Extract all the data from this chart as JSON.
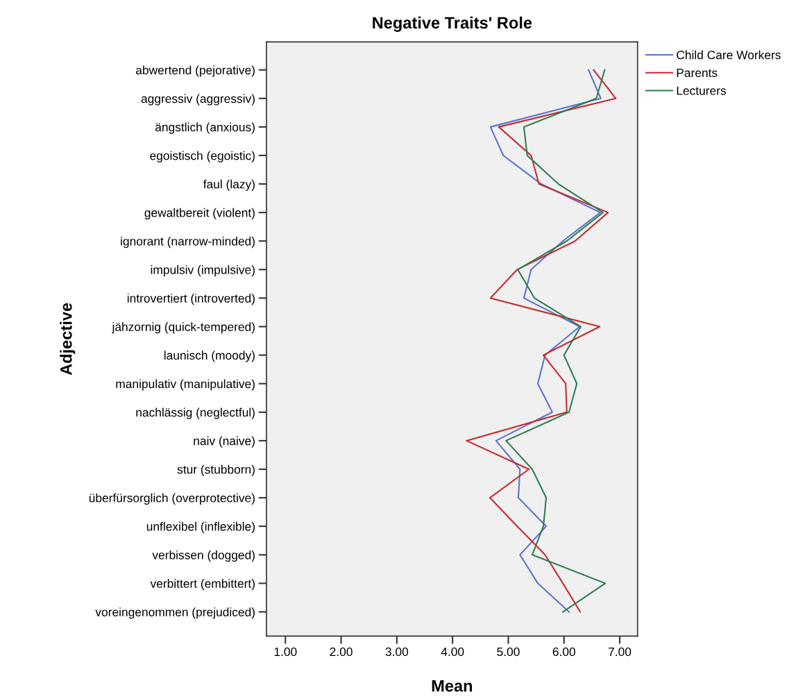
{
  "chart_data": {
    "type": "line",
    "orientation": "horizontal",
    "title": "Negative Traits' Role",
    "xlabel": "Mean",
    "ylabel": "Adjective",
    "categories": [
      "abwertend (pejorative)",
      "aggressiv (aggressiv)",
      "ängstlich (anxious)",
      "egoistisch (egoistic)",
      "faul (lazy)",
      "gewaltbereit (violent)",
      "ignorant (narrow-minded)",
      "impulsiv (impulsive)",
      "introvertiert (introverted)",
      "jähzornig (quick-tempered)",
      "launisch (moody)",
      "manipulativ (manipulative)",
      "nachlässig (neglectful)",
      "naiv (naive)",
      "stur (stubborn)",
      "überfürsorglich (overprotective)",
      "unflexibel (inflexible)",
      "verbissen (dogged)",
      "verbittert (embittert)",
      "voreingenommen (prejudiced)"
    ],
    "series": [
      {
        "name": "Child Care Workers",
        "color": "#5b74cc",
        "values": [
          6.44,
          6.66,
          4.68,
          4.91,
          5.59,
          6.65,
          5.98,
          5.41,
          5.28,
          6.28,
          5.66,
          5.53,
          5.79,
          4.78,
          5.21,
          5.18,
          5.68,
          5.21,
          5.53,
          6.09
        ]
      },
      {
        "name": "Parents",
        "color": "#c8282d",
        "values": [
          6.53,
          6.93,
          4.83,
          5.41,
          5.55,
          6.79,
          6.2,
          5.16,
          4.68,
          6.64,
          5.63,
          6.03,
          6.05,
          4.25,
          5.37,
          4.67,
          5.16,
          5.66,
          5.98,
          6.29
        ]
      },
      {
        "name": "Lecturers",
        "color": "#2e7d4f",
        "values": [
          6.73,
          6.58,
          5.28,
          5.34,
          5.9,
          6.7,
          6.05,
          5.17,
          5.47,
          6.3,
          6.0,
          6.23,
          6.09,
          4.96,
          5.43,
          5.68,
          5.63,
          5.43,
          6.74,
          5.98
        ]
      }
    ],
    "xlim": [
      0.66,
      7.32
    ],
    "xticks": [
      {
        "value": 1,
        "label": "1.00"
      },
      {
        "value": 2,
        "label": "2.00"
      },
      {
        "value": 3,
        "label": "3.00"
      },
      {
        "value": 4,
        "label": "4.00"
      },
      {
        "value": 5,
        "label": "5.00"
      },
      {
        "value": 6,
        "label": "6.00"
      },
      {
        "value": 7,
        "label": "7.00"
      }
    ],
    "grid": false,
    "legend": "top right",
    "line_style": "solid",
    "marker": "none"
  }
}
